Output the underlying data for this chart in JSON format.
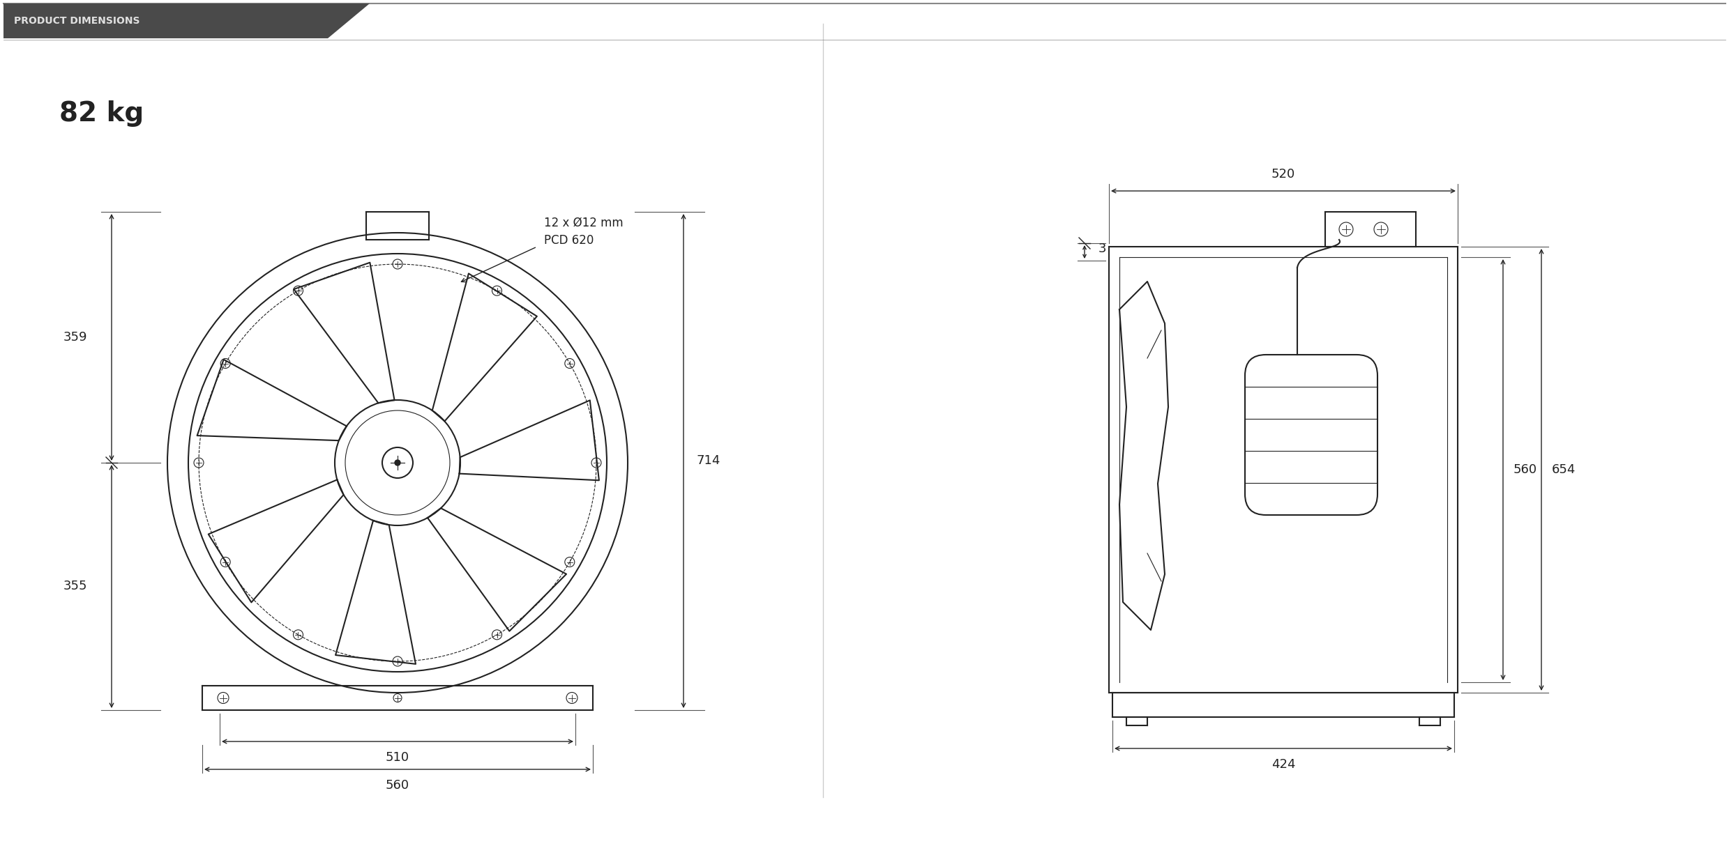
{
  "bg_color": "#ffffff",
  "header_bg": "#4a4a4a",
  "header_text": "PRODUCT DIMENSIONS",
  "header_text_color": "#e0e0e0",
  "weight_text": "82 kg",
  "dim_color": "#222222",
  "line_color": "#222222",
  "dim_line_color": "#444444",
  "annotations": {
    "bolt_circle": "12 x Ø12 mm",
    "pcd": "PCD 620",
    "dim_714": "714",
    "dim_359": "359",
    "dim_355": "355",
    "dim_510": "510",
    "dim_560_front": "560",
    "dim_520": "520",
    "dim_3": "3",
    "dim_560_side": "560",
    "dim_654": "654",
    "dim_424": "424"
  }
}
